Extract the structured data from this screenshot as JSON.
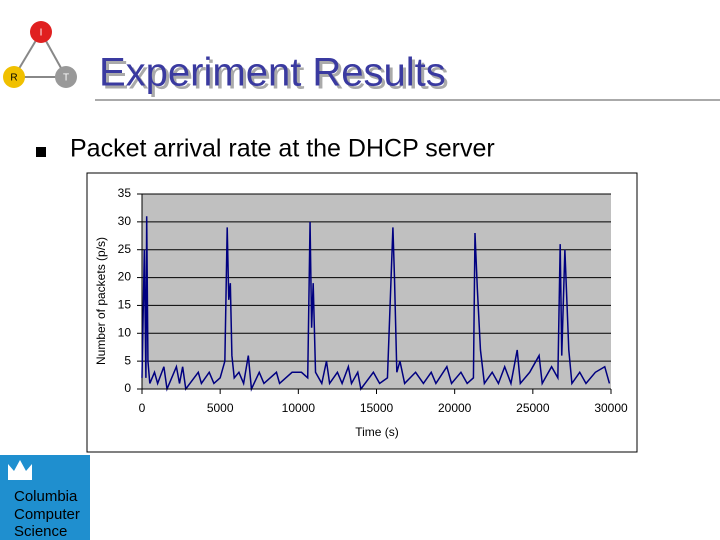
{
  "logo": {
    "nodes": [
      "I",
      "R",
      "T"
    ]
  },
  "title": "Experiment Results",
  "bullet": "Packet arrival rate at the DHCP server",
  "footer_logo": [
    "Columbia",
    "Computer",
    "Science"
  ],
  "chart_data": {
    "type": "line",
    "xlabel": "Time (s)",
    "ylabel": "Number of packets (p/s)",
    "x": [
      0,
      150,
      250,
      300,
      380,
      500,
      800,
      1000,
      1400,
      1600,
      2200,
      2400,
      2600,
      2800,
      3600,
      3800,
      4300,
      4600,
      5000,
      5300,
      5450,
      5550,
      5650,
      5750,
      5900,
      6200,
      6500,
      6800,
      7000,
      7500,
      7800,
      8600,
      8800,
      9600,
      10200,
      10600,
      10750,
      10850,
      10950,
      11100,
      11500,
      11800,
      12000,
      12500,
      12800,
      13200,
      13400,
      13800,
      14000,
      14800,
      15200,
      15700,
      16050,
      16150,
      16300,
      16500,
      16800,
      17500,
      18000,
      18500,
      18800,
      19500,
      19800,
      20400,
      20800,
      21200,
      21300,
      21450,
      21650,
      21900,
      22400,
      22800,
      23200,
      23600,
      24000,
      24200,
      24800,
      25400,
      25600,
      26200,
      26600,
      26750,
      26850,
      27050,
      27300,
      27500,
      28000,
      28400,
      29000,
      29600,
      29900
    ],
    "values": [
      2,
      25,
      2,
      31,
      5,
      1,
      3,
      1,
      4,
      0,
      4,
      1,
      4,
      0,
      3,
      1,
      3,
      1,
      2,
      5,
      29,
      16,
      19,
      6,
      2,
      3,
      1,
      6,
      0,
      3,
      1,
      3,
      1,
      3,
      3,
      2,
      30,
      11,
      19,
      3,
      1,
      5,
      1,
      3,
      1,
      4,
      1,
      3,
      0,
      3,
      1,
      2,
      29,
      20,
      3,
      5,
      1,
      3,
      1,
      3,
      1,
      4,
      1,
      3,
      1,
      2,
      28,
      18,
      7,
      1,
      3,
      1,
      4,
      1,
      7,
      1,
      3,
      6,
      1,
      4,
      2,
      26,
      6,
      25,
      7,
      1,
      3,
      1,
      3,
      4,
      1
    ],
    "color": "#000080",
    "xlim": [
      0,
      30000
    ],
    "ylim": [
      0,
      35
    ],
    "xticks": [
      0,
      5000,
      10000,
      15000,
      20000,
      25000,
      30000
    ],
    "yticks": [
      0,
      5,
      10,
      15,
      20,
      25,
      30,
      35
    ],
    "grid": true
  }
}
